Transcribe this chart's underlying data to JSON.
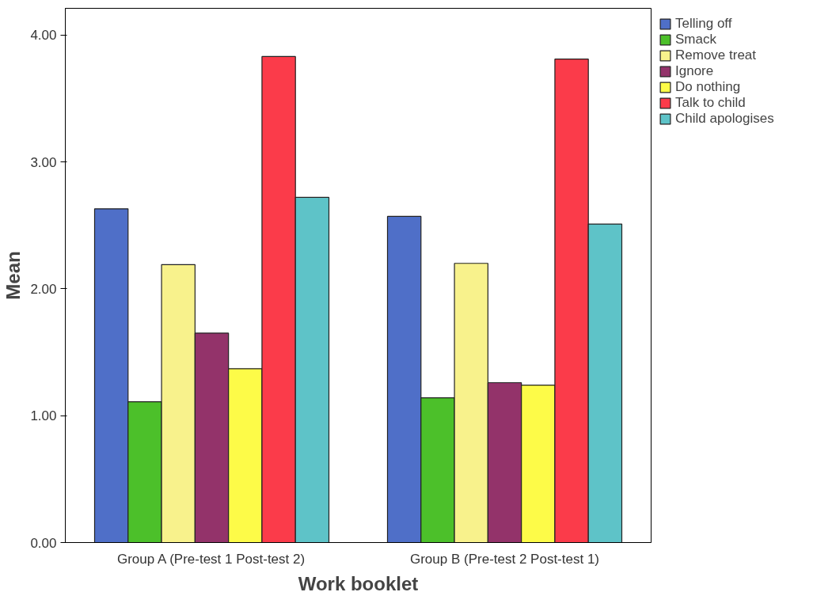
{
  "chart_data": {
    "type": "bar",
    "xlabel": "Work booklet",
    "ylabel": "Mean",
    "categories": [
      "Group A (Pre-test 1 Post-test 2)",
      "Group B (Pre-test 2 Post-test 1)"
    ],
    "series": [
      {
        "name": "Telling off",
        "color": "#4f6fc8",
        "values": [
          2.63,
          2.57
        ]
      },
      {
        "name": "Smack",
        "color": "#4cc02a",
        "values": [
          1.11,
          1.14
        ]
      },
      {
        "name": "Remove treat",
        "color": "#f8f28c",
        "values": [
          2.19,
          2.2
        ]
      },
      {
        "name": "Ignore",
        "color": "#93336a",
        "values": [
          1.65,
          1.26
        ]
      },
      {
        "name": "Do nothing",
        "color": "#fdfb48",
        "values": [
          1.37,
          1.24
        ]
      },
      {
        "name": "Talk to child",
        "color": "#fb3b4a",
        "values": [
          3.83,
          3.81
        ]
      },
      {
        "name": "Child apologises",
        "color": "#5ec3c8",
        "values": [
          2.72,
          2.51
        ]
      }
    ],
    "ylim": [
      0,
      4.21
    ],
    "yticks": [
      {
        "value": 0,
        "label": "0.00"
      },
      {
        "value": 1,
        "label": "1.00"
      },
      {
        "value": 2,
        "label": "2.00"
      },
      {
        "value": 3,
        "label": "3.00"
      },
      {
        "value": 4,
        "label": "4.00"
      }
    ],
    "legend": "right",
    "grid": false
  }
}
